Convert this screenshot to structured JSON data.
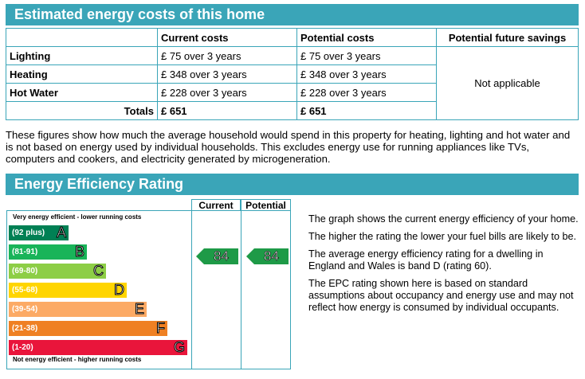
{
  "costs": {
    "title": "Estimated energy costs of this home",
    "headers": {
      "blank": "",
      "current": "Current costs",
      "potential": "Potential costs",
      "savings": "Potential future savings"
    },
    "rows": [
      {
        "label": "Lighting",
        "current": "£ 75 over 3 years",
        "potential": "£ 75 over 3 years"
      },
      {
        "label": "Heating",
        "current": "£ 348 over 3 years",
        "potential": "£ 348 over 3 years"
      },
      {
        "label": "Hot Water",
        "current": "£ 228 over 3 years",
        "potential": "£ 228 over 3 years"
      }
    ],
    "savings_value": "Not applicable",
    "totals": {
      "label": "Totals",
      "current": "£ 651",
      "potential": "£ 651"
    },
    "note": "These figures show how much the average household would spend in this property for heating, lighting and hot water and is not based on energy used by individual households. This excludes energy use for running appliances like TVs, computers and cookers, and electricity generated by microgeneration."
  },
  "rating": {
    "title": "Energy Efficiency Rating",
    "col_current": "Current",
    "col_potential": "Potential",
    "top_caption": "Very energy efficient - lower running costs",
    "bottom_caption": "Not energy efficient - higher running costs",
    "bands": [
      {
        "range": "(92 plus)",
        "letter": "A",
        "color": "#008054"
      },
      {
        "range": "(81-91)",
        "letter": "B",
        "color": "#19b459"
      },
      {
        "range": "(69-80)",
        "letter": "C",
        "color": "#8dce46"
      },
      {
        "range": "(55-68)",
        "letter": "D",
        "color": "#ffd500"
      },
      {
        "range": "(39-54)",
        "letter": "E",
        "color": "#fcaa65"
      },
      {
        "range": "(21-38)",
        "letter": "F",
        "color": "#ef8023"
      },
      {
        "range": "(1-20)",
        "letter": "G",
        "color": "#e9153b"
      }
    ],
    "current_value": "84",
    "potential_value": "84",
    "arrow_color": "#1e9a47",
    "paragraphs": [
      "The graph shows the current energy efficiency of your home.",
      "The higher the rating the lower your fuel bills are likely to be.",
      "The average energy efficiency rating for a dwelling in England and Wales is band D (rating 60).",
      "The EPC rating shown here is based on standard assumptions about occupancy and energy use and may not reflect how energy is consumed by individual occupants."
    ]
  }
}
